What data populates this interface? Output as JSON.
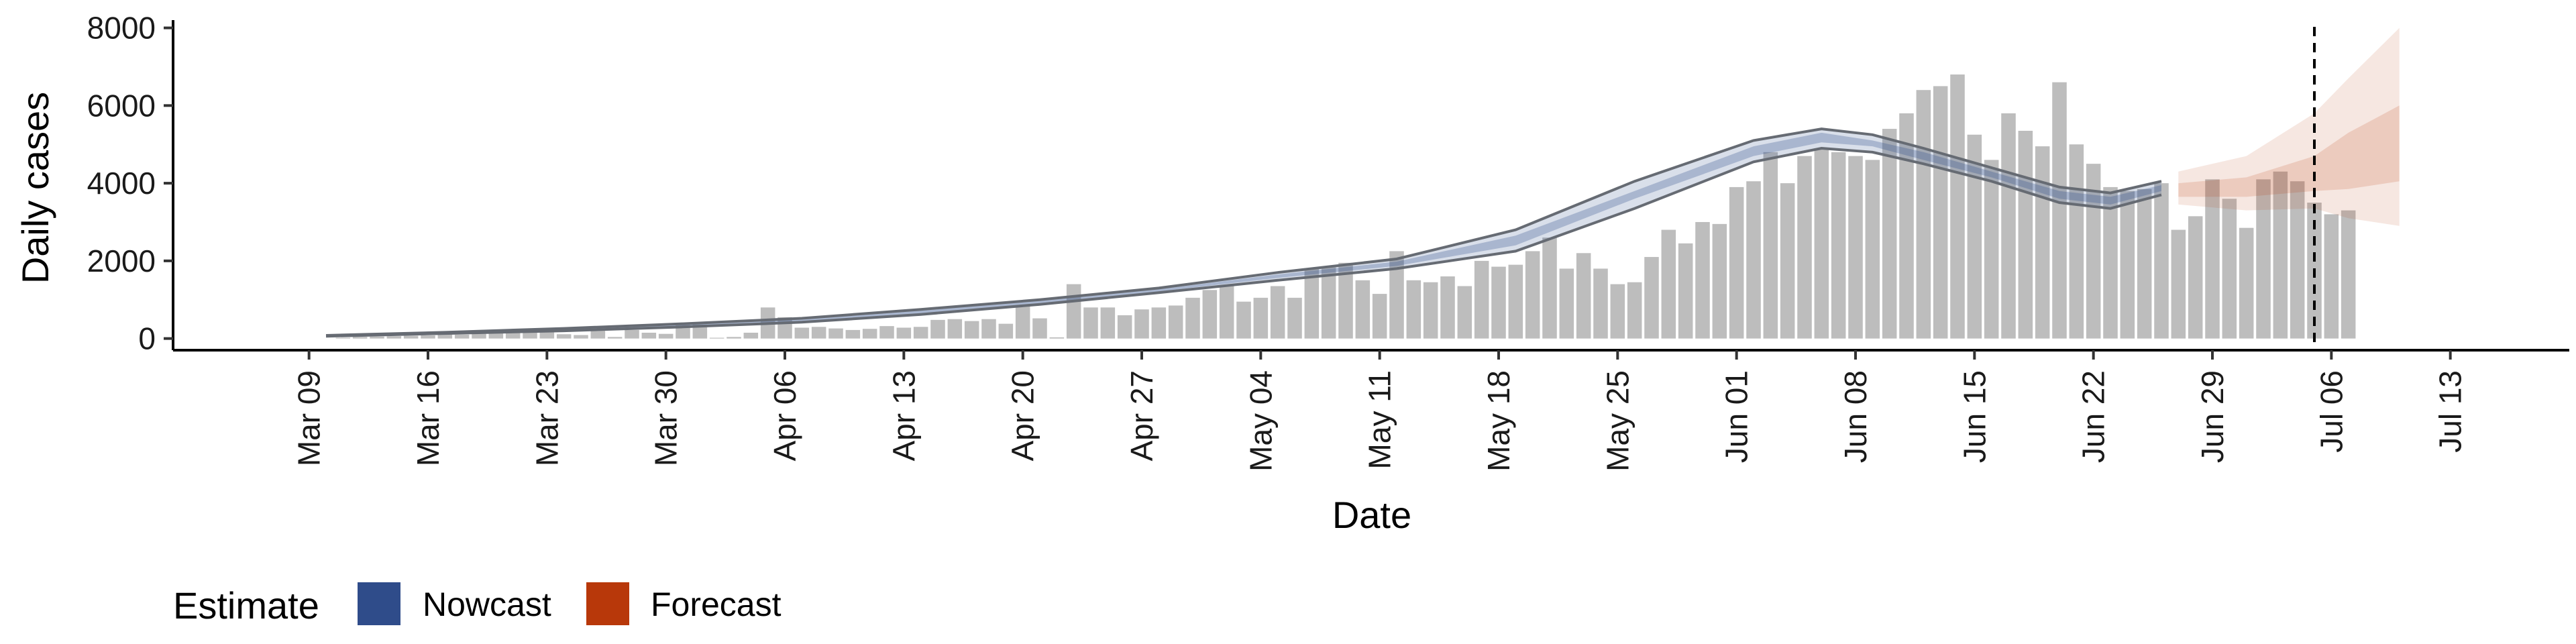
{
  "chart_data": {
    "type": "bar",
    "xlabel": "Date",
    "ylabel": "Daily cases",
    "x_range": [
      "2020-03-01",
      "2020-07-20"
    ],
    "ylim": [
      -300,
      8200
    ],
    "y_ticks": [
      0,
      2000,
      4000,
      6000,
      8000
    ],
    "x_ticks": [
      {
        "date": "2020-03-09",
        "label": "Mar 09"
      },
      {
        "date": "2020-03-16",
        "label": "Mar 16"
      },
      {
        "date": "2020-03-23",
        "label": "Mar 23"
      },
      {
        "date": "2020-03-30",
        "label": "Mar 30"
      },
      {
        "date": "2020-04-06",
        "label": "Apr 06"
      },
      {
        "date": "2020-04-13",
        "label": "Apr 13"
      },
      {
        "date": "2020-04-20",
        "label": "Apr 20"
      },
      {
        "date": "2020-04-27",
        "label": "Apr 27"
      },
      {
        "date": "2020-05-04",
        "label": "May 04"
      },
      {
        "date": "2020-05-11",
        "label": "May 11"
      },
      {
        "date": "2020-05-18",
        "label": "May 18"
      },
      {
        "date": "2020-05-25",
        "label": "May 25"
      },
      {
        "date": "2020-06-01",
        "label": "Jun 01"
      },
      {
        "date": "2020-06-08",
        "label": "Jun 08"
      },
      {
        "date": "2020-06-15",
        "label": "Jun 15"
      },
      {
        "date": "2020-06-22",
        "label": "Jun 22"
      },
      {
        "date": "2020-06-29",
        "label": "Jun 29"
      },
      {
        "date": "2020-07-06",
        "label": "Jul 06"
      },
      {
        "date": "2020-07-13",
        "label": "Jul 13"
      }
    ],
    "grid": false,
    "reference_line_date": "2020-07-05",
    "bars": {
      "start_date": "2020-03-10",
      "values": [
        0,
        20,
        40,
        50,
        60,
        70,
        80,
        120,
        100,
        120,
        150,
        180,
        150,
        160,
        110,
        90,
        200,
        40,
        220,
        150,
        120,
        350,
        360,
        20,
        40,
        150,
        800,
        550,
        280,
        300,
        260,
        220,
        250,
        320,
        280,
        300,
        480,
        500,
        450,
        500,
        380,
        850,
        520,
        30,
        1400,
        800,
        800,
        600,
        750,
        800,
        850,
        1050,
        1250,
        1350,
        950,
        1050,
        1350,
        1050,
        1800,
        1850,
        1950,
        1500,
        1150,
        2250,
        1500,
        1450,
        1600,
        1350,
        2000,
        1850,
        1900,
        2250,
        2600,
        1800,
        2200,
        1800,
        1400,
        1450,
        2100,
        2800,
        2450,
        3000,
        2950,
        3900,
        4050,
        4800,
        4000,
        4700,
        4900,
        4800,
        4700,
        4600,
        5400,
        5800,
        6400,
        6500,
        6800,
        5250,
        4600,
        5800,
        5350,
        4950,
        6600,
        5000,
        4500,
        3900,
        3800,
        3850,
        4000,
        2800,
        3150,
        4100,
        3600,
        2850,
        4100,
        4300,
        4050,
        3500,
        3200,
        3300
      ]
    },
    "series": [
      {
        "name": "Nowcast",
        "color": "#2f4c8a",
        "type": "band",
        "dates": [
          "2020-03-10",
          "2020-03-17",
          "2020-03-24",
          "2020-03-31",
          "2020-04-07",
          "2020-04-14",
          "2020-04-21",
          "2020-04-28",
          "2020-05-05",
          "2020-05-12",
          "2020-05-19",
          "2020-05-26",
          "2020-06-02",
          "2020-06-06",
          "2020-06-09",
          "2020-06-12",
          "2020-06-16",
          "2020-06-20",
          "2020-06-23",
          "2020-06-26"
        ],
        "upper": [
          80,
          160,
          260,
          380,
          520,
          750,
          1000,
          1300,
          1700,
          2050,
          2800,
          4050,
          5100,
          5400,
          5250,
          4900,
          4400,
          3900,
          3750,
          4050
        ],
        "lower": [
          60,
          130,
          200,
          300,
          420,
          620,
          880,
          1180,
          1500,
          1800,
          2250,
          3350,
          4550,
          4900,
          4800,
          4500,
          4050,
          3500,
          3350,
          3700
        ],
        "inner_upper": [
          75,
          150,
          240,
          360,
          490,
          720,
          970,
          1270,
          1650,
          1980,
          2650,
          3800,
          4950,
          5300,
          5100,
          4800,
          4300,
          3800,
          3650,
          3950
        ],
        "inner_lower": [
          65,
          140,
          220,
          320,
          450,
          650,
          910,
          1210,
          1560,
          1870,
          2400,
          3600,
          4700,
          5050,
          4950,
          4600,
          4150,
          3600,
          3450,
          3800
        ]
      },
      {
        "name": "Forecast",
        "color": "#b8380a",
        "type": "band",
        "dates": [
          "2020-06-27",
          "2020-07-01",
          "2020-07-05",
          "2020-07-07",
          "2020-07-10"
        ],
        "upper": [
          4300,
          4700,
          5800,
          6700,
          8000
        ],
        "lower": [
          3450,
          3300,
          3350,
          3100,
          2900
        ],
        "inner_upper": [
          4000,
          4150,
          4700,
          5300,
          6000
        ],
        "inner_lower": [
          3650,
          3650,
          3800,
          3850,
          4050
        ]
      }
    ],
    "legend": {
      "title": "Estimate",
      "placement": "bottom-left",
      "entries": [
        {
          "label": "Nowcast",
          "color": "#2f4c8a"
        },
        {
          "label": "Forecast",
          "color": "#b8380a"
        }
      ]
    }
  }
}
